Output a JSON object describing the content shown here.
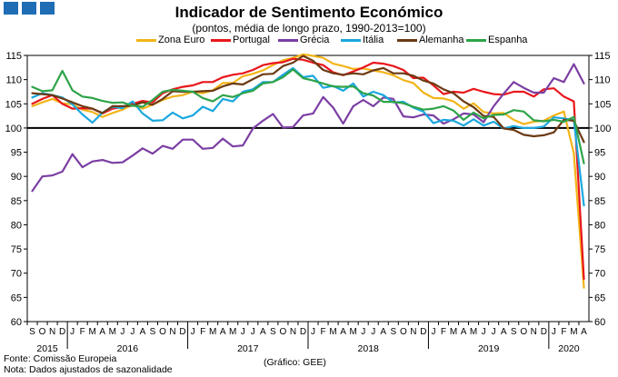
{
  "title": "Indicador de Sentimento Económico",
  "subtitle": "(pontos, média de longo prazo, 1990-2013=100)",
  "footer": {
    "source": "Fonte: Comissão Europeia",
    "note": "Nota: Dados ajustados de sazonalidade",
    "credit": "(Gráfico: GEE)"
  },
  "chart_data": {
    "type": "line",
    "ylim": [
      60,
      115
    ],
    "yticks": [
      60,
      65,
      70,
      75,
      80,
      85,
      90,
      95,
      100,
      105,
      110,
      115
    ],
    "reference_line": 100,
    "grid": false,
    "legend_position": "top",
    "month_labels": [
      "S",
      "O",
      "N",
      "D",
      "J",
      "F",
      "M",
      "A",
      "M",
      "J",
      "J",
      "A",
      "S",
      "O",
      "N",
      "D",
      "J",
      "F",
      "M",
      "A",
      "M",
      "J",
      "J",
      "A",
      "S",
      "O",
      "N",
      "D",
      "J",
      "F",
      "M",
      "A",
      "M",
      "J",
      "J",
      "A",
      "S",
      "O",
      "N",
      "D",
      "J",
      "F",
      "M",
      "A",
      "M",
      "J",
      "J",
      "A",
      "S",
      "O",
      "N",
      "D",
      "J",
      "F",
      "M",
      "A"
    ],
    "year_labels": [
      {
        "label": "2015",
        "start": 0,
        "end": 3
      },
      {
        "label": "2016",
        "start": 4,
        "end": 15
      },
      {
        "label": "2017",
        "start": 16,
        "end": 27
      },
      {
        "label": "2018",
        "start": 28,
        "end": 39
      },
      {
        "label": "2019",
        "start": 40,
        "end": 51
      },
      {
        "label": "2020",
        "start": 52,
        "end": 55
      }
    ],
    "series": [
      {
        "name": "Zona Euro",
        "color": "#f2b418",
        "values": [
          104.5,
          105.3,
          106.0,
          105.1,
          104.9,
          103.8,
          103.3,
          102.3,
          103.1,
          103.8,
          104.8,
          104.0,
          104.8,
          105.8,
          106.5,
          106.8,
          107.5,
          107.2,
          107.8,
          109.3,
          109.3,
          110.7,
          111.2,
          111.9,
          113.0,
          114.0,
          114.5,
          115.2,
          114.9,
          114.5,
          113.3,
          112.8,
          112.2,
          112.3,
          111.9,
          111.5,
          110.9,
          109.9,
          109.3,
          107.3,
          106.2,
          106.1,
          105.5,
          104.0,
          105.1,
          103.3,
          103.0,
          103.1,
          101.7,
          100.8,
          101.3,
          101.5,
          102.6,
          103.4,
          94.8,
          67.0
        ]
      },
      {
        "name": "Portugal",
        "color": "#e8161b",
        "values": [
          105.0,
          106.0,
          106.8,
          105.0,
          104.0,
          104.1,
          104.0,
          103.0,
          104.0,
          104.3,
          105.0,
          105.6,
          105.3,
          107.2,
          108.0,
          108.5,
          108.8,
          109.5,
          109.5,
          110.5,
          111.0,
          111.3,
          112.0,
          113.0,
          113.4,
          113.6,
          114.3,
          114.1,
          113.5,
          113.0,
          111.5,
          110.9,
          111.7,
          112.5,
          113.5,
          113.3,
          112.8,
          112.0,
          110.3,
          110.4,
          108.8,
          107.0,
          107.5,
          107.3,
          108.1,
          107.5,
          107.0,
          106.9,
          107.5,
          107.5,
          106.5,
          108.0,
          108.2,
          106.5,
          105.5,
          68.8
        ]
      },
      {
        "name": "Grécia",
        "color": "#7b3fa3",
        "values": [
          87.0,
          90.0,
          90.2,
          91.0,
          94.6,
          91.9,
          93.1,
          93.4,
          92.8,
          92.9,
          94.3,
          95.8,
          94.7,
          96.3,
          95.7,
          97.6,
          97.6,
          95.7,
          95.9,
          97.8,
          96.2,
          96.4,
          99.9,
          101.5,
          102.9,
          100.1,
          100.2,
          102.6,
          103.0,
          106.4,
          104.2,
          100.9,
          104.5,
          105.8,
          104.5,
          106.3,
          106.0,
          102.4,
          102.2,
          102.8,
          102.6,
          100.9,
          101.8,
          103.0,
          102.8,
          101.2,
          104.5,
          107.1,
          109.5,
          108.3,
          107.3,
          107.3,
          110.3,
          109.5,
          113.2,
          109.2
        ]
      },
      {
        "name": "Itália",
        "color": "#1aa7de",
        "values": [
          106.3,
          107.2,
          106.8,
          106.3,
          104.9,
          102.8,
          101.1,
          103.2,
          104.4,
          104.1,
          105.5,
          103.0,
          101.5,
          101.6,
          103.2,
          102.0,
          102.6,
          104.4,
          103.5,
          106.0,
          105.5,
          107.5,
          108.0,
          109.5,
          109.5,
          111.0,
          112.4,
          110.5,
          110.8,
          108.3,
          108.7,
          107.7,
          109.2,
          106.5,
          107.5,
          106.8,
          105.3,
          105.4,
          104.2,
          103.4,
          101.0,
          101.7,
          101.5,
          100.5,
          101.8,
          100.5,
          101.3,
          99.9,
          100.4,
          100.0,
          100.0,
          100.3,
          102.2,
          102.0,
          101.6,
          84.0
        ]
      },
      {
        "name": "Alemanha",
        "color": "#6b3a13",
        "values": [
          107.2,
          107.0,
          106.8,
          106.1,
          105.3,
          104.5,
          104.0,
          103.1,
          104.5,
          104.5,
          104.6,
          105.3,
          104.8,
          106.0,
          107.6,
          107.5,
          107.5,
          107.6,
          107.7,
          108.6,
          109.2,
          109.0,
          110.1,
          111.1,
          111.2,
          112.8,
          113.5,
          114.9,
          113.9,
          112.0,
          111.3,
          111.0,
          111.3,
          111.1,
          111.9,
          112.4,
          111.3,
          111.3,
          110.8,
          109.8,
          109.2,
          108.0,
          107.2,
          105.5,
          104.3,
          102.5,
          102.3,
          99.9,
          99.6,
          98.6,
          98.3,
          98.5,
          99.1,
          101.7,
          101.5,
          97.1
        ]
      },
      {
        "name": "Espanha",
        "color": "#2ea349",
        "values": [
          108.5,
          107.6,
          107.8,
          111.8,
          107.8,
          106.5,
          106.2,
          105.6,
          105.2,
          105.3,
          104.6,
          104.4,
          105.8,
          107.5,
          107.9,
          107.7,
          107.5,
          106.2,
          105.5,
          106.8,
          106.4,
          107.2,
          107.7,
          109.2,
          109.5,
          110.5,
          112.1,
          110.3,
          109.8,
          109.2,
          108.6,
          108.5,
          108.6,
          107.2,
          106.7,
          105.4,
          105.4,
          105.1,
          104.4,
          103.8,
          104.0,
          104.5,
          103.6,
          101.7,
          103.2,
          102.0,
          102.7,
          102.8,
          103.7,
          103.4,
          101.6,
          101.4,
          101.7,
          101.3,
          102.3,
          92.7
        ]
      }
    ]
  }
}
